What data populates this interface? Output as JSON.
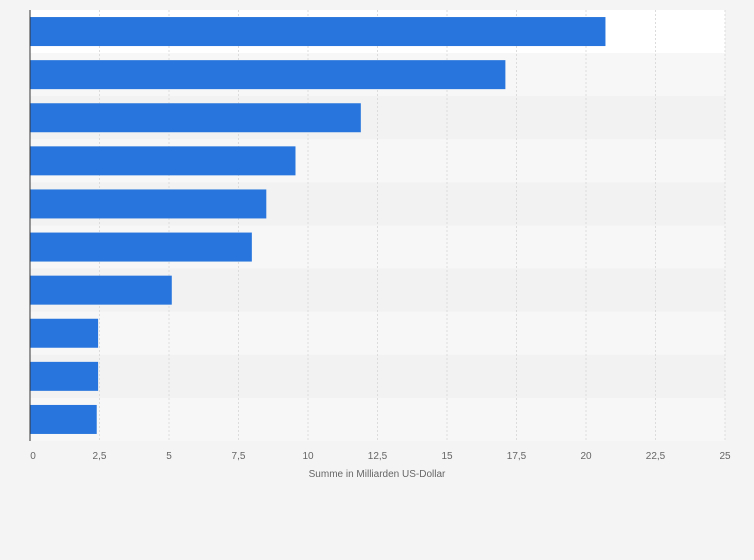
{
  "chart_data": {
    "type": "bar",
    "orientation": "horizontal",
    "xlabel": "Summe in Milliarden US-Dollar",
    "xlim": [
      0,
      25
    ],
    "x_ticks": [
      "0",
      "2,5",
      "5",
      "7,5",
      "10",
      "12,5",
      "15",
      "17,5",
      "20",
      "22,5",
      "25"
    ],
    "values": [
      20.7,
      17.1,
      11.9,
      9.55,
      8.5,
      7.98,
      5.1,
      2.45,
      2.45,
      2.4
    ],
    "bar_color": "#2876dd",
    "grid": true,
    "band_colors": [
      "#ffffff",
      "#f7f7f7",
      "#f2f2f2"
    ]
  }
}
